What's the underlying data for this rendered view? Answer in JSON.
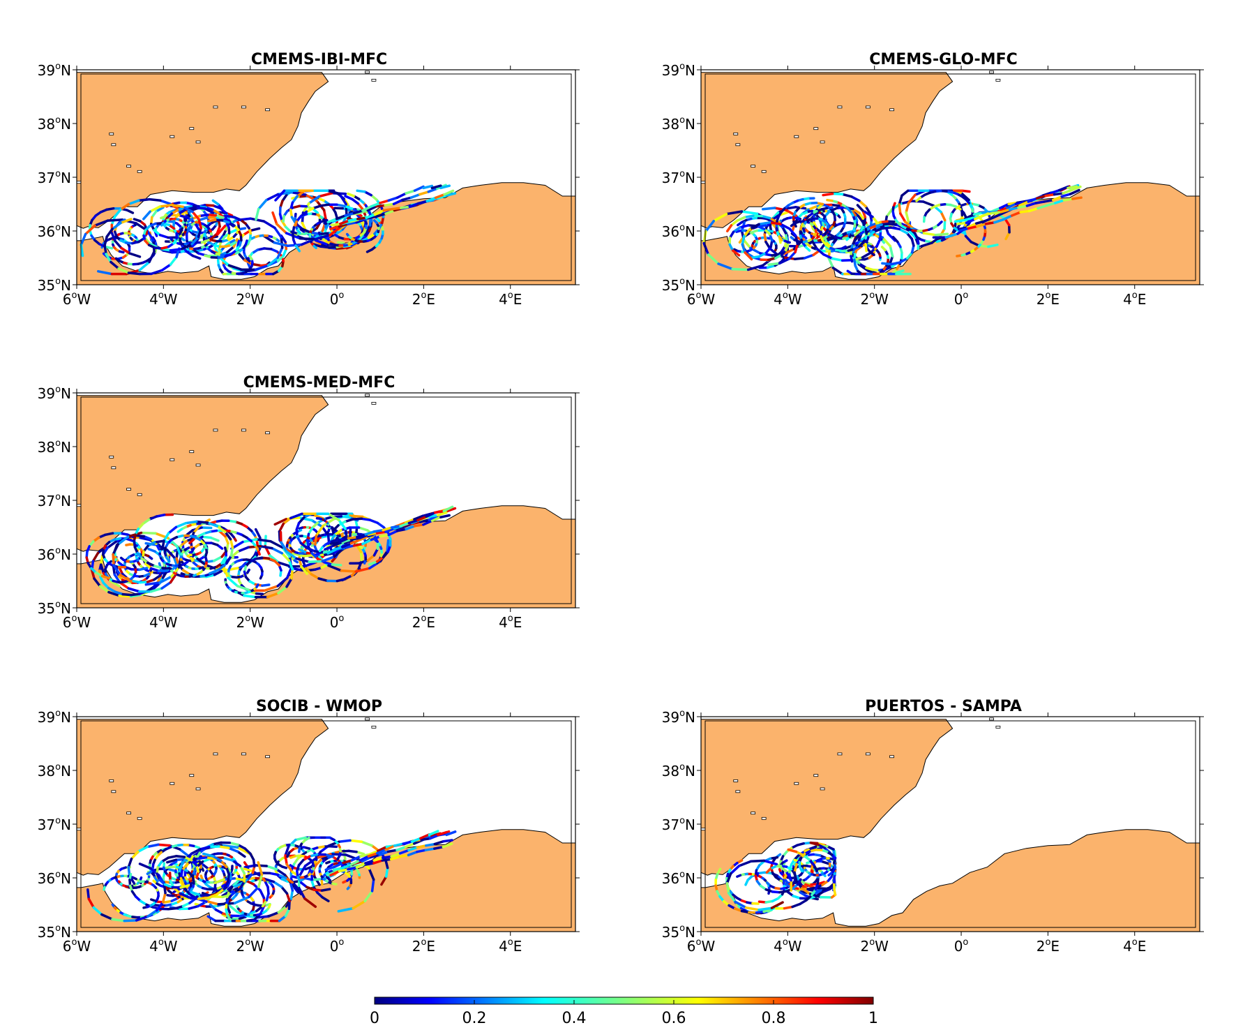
{
  "figure": {
    "type": "multi-panel map of drifter trajectories colored by value",
    "colormap": "jet",
    "land_color": "#FBB36C",
    "sea_color": "#FFFFFF",
    "extent": {
      "lon": [
        -6,
        5.5
      ],
      "lat": [
        35,
        39
      ]
    }
  },
  "axes": {
    "x_ticks": [
      {
        "deg": "6",
        "hemi": "W"
      },
      {
        "deg": "4",
        "hemi": "W"
      },
      {
        "deg": "2",
        "hemi": "W"
      },
      {
        "deg": "0",
        "hemi": ""
      },
      {
        "deg": "2",
        "hemi": "E"
      },
      {
        "deg": "4",
        "hemi": "E"
      }
    ],
    "y_ticks": [
      {
        "deg": "39",
        "hemi": "N"
      },
      {
        "deg": "38",
        "hemi": "N"
      },
      {
        "deg": "37",
        "hemi": "N"
      },
      {
        "deg": "36",
        "hemi": "N"
      },
      {
        "deg": "35",
        "hemi": "N"
      }
    ],
    "degree_symbol": "o"
  },
  "panels": [
    {
      "title": "CMEMS-IBI-MFC",
      "variant": "full",
      "seed": 11
    },
    {
      "title": "CMEMS-GLO-MFC",
      "variant": "full",
      "seed": 23
    },
    {
      "title": "CMEMS-MED-MFC",
      "variant": "full",
      "seed": 37
    },
    {
      "title": "SOCIB - WMOP",
      "variant": "full",
      "seed": 53
    },
    {
      "title": "PUERTOS - SAMPA",
      "variant": "west",
      "seed": 71
    }
  ],
  "colorbar": {
    "min": 0,
    "max": 1,
    "tick_labels": [
      "0",
      "0.2",
      "0.4",
      "0.6",
      "0.8",
      "1"
    ]
  }
}
